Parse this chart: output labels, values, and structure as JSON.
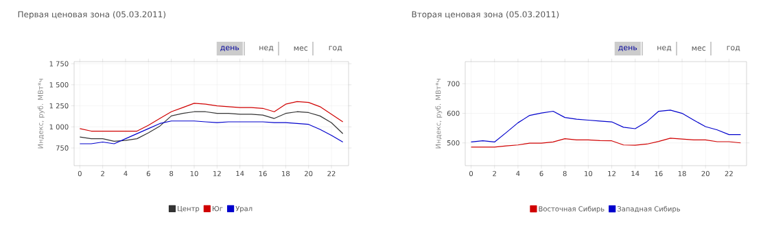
{
  "chart_data": [
    {
      "type": "line",
      "title": "Первая ценовая зона (05.03.2011)",
      "ylabel": "Индекс, руб. МВт*ч",
      "annotations": [
        "день",
        "нед",
        "мес",
        "год"
      ],
      "x": [
        0,
        1,
        2,
        3,
        4,
        5,
        6,
        7,
        8,
        9,
        10,
        11,
        12,
        13,
        14,
        15,
        16,
        17,
        18,
        19,
        20,
        21,
        22,
        23
      ],
      "xlim": [
        -0.5,
        23.5
      ],
      "xticks": [
        0,
        2,
        4,
        6,
        8,
        10,
        12,
        14,
        16,
        18,
        20,
        22
      ],
      "ylim": [
        540,
        1775
      ],
      "yticks": [
        {
          "value": 750,
          "label": "750"
        },
        {
          "value": 1000,
          "label": "1 000"
        },
        {
          "value": 1250,
          "label": "1 250"
        },
        {
          "value": 1500,
          "label": "1 500"
        },
        {
          "value": 1750,
          "label": "1 750"
        }
      ],
      "grid": true,
      "legend": "bottom",
      "series": [
        {
          "name": "Центр",
          "color": "#333333",
          "values": [
            880,
            860,
            860,
            830,
            840,
            860,
            930,
            1010,
            1130,
            1160,
            1180,
            1180,
            1160,
            1160,
            1150,
            1150,
            1140,
            1100,
            1160,
            1180,
            1170,
            1130,
            1050,
            920
          ]
        },
        {
          "name": "Юг",
          "color": "#d00000",
          "values": [
            980,
            950,
            950,
            950,
            950,
            950,
            1020,
            1100,
            1180,
            1230,
            1280,
            1270,
            1250,
            1240,
            1230,
            1230,
            1220,
            1180,
            1270,
            1300,
            1290,
            1240,
            1150,
            1060
          ]
        },
        {
          "name": "Урал",
          "color": "#0000cc",
          "values": [
            800,
            800,
            820,
            800,
            860,
            920,
            980,
            1040,
            1070,
            1070,
            1070,
            1060,
            1050,
            1060,
            1060,
            1060,
            1060,
            1050,
            1050,
            1040,
            1030,
            970,
            900,
            820
          ]
        }
      ]
    },
    {
      "type": "line",
      "title": "Вторая ценовая зона (05.03.2011)",
      "ylabel": "Индекс, руб. МВт*ч",
      "annotations": [
        "день",
        "нед",
        "мес",
        "год"
      ],
      "x": [
        0,
        1,
        2,
        3,
        4,
        5,
        6,
        7,
        8,
        9,
        10,
        11,
        12,
        13,
        14,
        15,
        16,
        17,
        18,
        19,
        20,
        21,
        22,
        23
      ],
      "xlim": [
        -0.5,
        23.5
      ],
      "xticks": [
        0,
        2,
        4,
        6,
        8,
        10,
        12,
        14,
        16,
        18,
        20,
        22
      ],
      "ylim": [
        423,
        775
      ],
      "yticks": [
        500,
        600,
        700
      ],
      "grid": true,
      "legend": "bottom",
      "series": [
        {
          "name": "Восточная Сибирь",
          "color": "#d00000",
          "values": [
            486,
            486,
            486,
            490,
            493,
            499,
            499,
            503,
            514,
            510,
            510,
            508,
            507,
            493,
            492,
            496,
            505,
            516,
            513,
            510,
            510,
            504,
            504,
            500
          ]
        },
        {
          "name": "Западная Сибирь",
          "color": "#0000cc",
          "values": [
            503,
            507,
            503,
            535,
            568,
            593,
            601,
            607,
            586,
            580,
            577,
            574,
            571,
            553,
            548,
            572,
            607,
            611,
            600,
            577,
            555,
            544,
            528,
            528
          ]
        }
      ]
    }
  ]
}
